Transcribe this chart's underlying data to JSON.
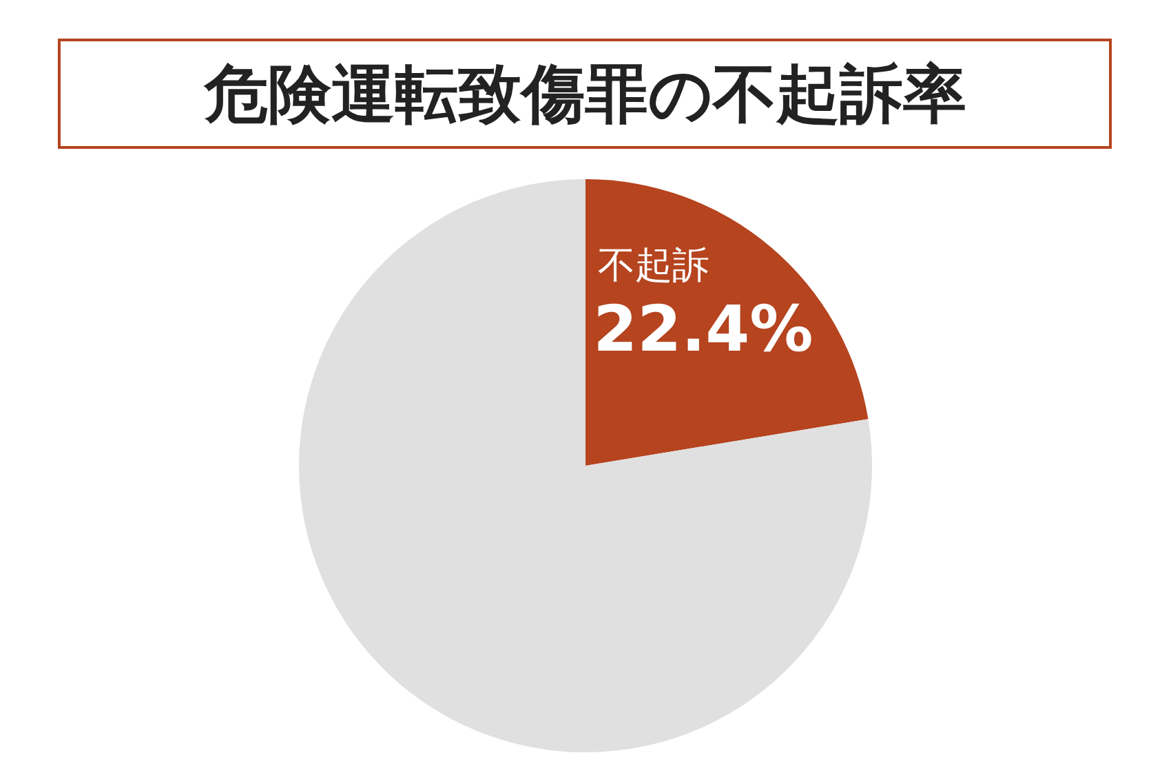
{
  "chart_data": {
    "type": "pie",
    "title": "危険運転致傷罪の不起訴率",
    "categories": [
      "不起訴",
      null
    ],
    "values": [
      22.4,
      77.6
    ],
    "colors": [
      "#b5441f",
      "#e0e0e0"
    ],
    "value_labels": [
      "22.4%",
      null
    ],
    "legend": false
  }
}
